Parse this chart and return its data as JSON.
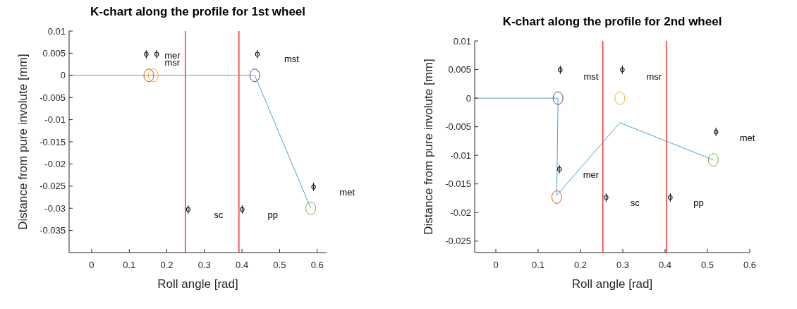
{
  "chart_data": [
    {
      "type": "line",
      "title": "K-chart along the profile for 1st wheel",
      "xlabel": "Roll angle [rad]",
      "ylabel": "Distance from pure involute [mm]",
      "xlim": [
        -0.06,
        0.625
      ],
      "xticks": [
        0,
        0.1,
        0.2,
        0.3,
        0.4,
        0.5,
        0.6
      ],
      "ylim": [
        -0.04,
        0.01
      ],
      "yticks": [
        0.01,
        0.005,
        0,
        -0.005,
        -0.01,
        -0.015,
        -0.02,
        -0.025,
        -0.03,
        -0.035
      ],
      "grid": false,
      "series": [
        {
          "type": "line",
          "color": "#4a9fd8",
          "marker": "none",
          "x": [
            -0.06,
            0.434,
            0.583
          ],
          "values": [
            0,
            0,
            -0.03
          ]
        },
        {
          "type": "scatter",
          "color": "#d95319",
          "marker": "circle",
          "x": [
            0.152
          ],
          "values": [
            0
          ]
        },
        {
          "type": "scatter",
          "color": "#edb120",
          "marker": "circle",
          "x": [
            0.164
          ],
          "values": [
            0
          ]
        },
        {
          "type": "scatter",
          "color": "#7e2f8e",
          "marker": "circle",
          "x": [
            0.434
          ],
          "values": [
            0
          ]
        },
        {
          "type": "scatter",
          "color": "#77ac30",
          "marker": "circle",
          "x": [
            0.583
          ],
          "values": [
            -0.03
          ]
        }
      ],
      "ref_lines": [
        {
          "axis": "x",
          "value": 0.249,
          "color": "#ff0000"
        },
        {
          "axis": "x",
          "value": 0.392,
          "color": "#ff0000"
        }
      ],
      "annotations": [
        "ϕ",
        "ϕ",
        "mer",
        "msr",
        "ϕ",
        "mst",
        "ϕ",
        "sc",
        "ϕ",
        "pp",
        "ϕ",
        "met"
      ]
    },
    {
      "type": "line",
      "title": "K-chart along the profile for 2nd wheel",
      "xlabel": "Roll angle [rad]",
      "ylabel": "Distance from pure involute [mm]",
      "xlim": [
        -0.05,
        0.6
      ],
      "xticks": [
        0,
        0.1,
        0.2,
        0.3,
        0.4,
        0.5,
        0.6
      ],
      "ylim": [
        -0.027,
        0.01
      ],
      "yticks": [
        0.01,
        0.005,
        0,
        -0.005,
        -0.01,
        -0.015,
        -0.02,
        -0.025
      ],
      "grid": false,
      "series": [
        {
          "type": "line",
          "color": "#4a9fd8",
          "marker": "none",
          "x": [
            -0.05,
            0.147,
            0.144,
            0.293,
            0.514
          ],
          "values": [
            0,
            0,
            -0.017,
            -0.0043,
            -0.0108
          ]
        },
        {
          "type": "scatter",
          "color": "#7e2f8e",
          "marker": "circle",
          "x": [
            0.147
          ],
          "values": [
            0
          ]
        },
        {
          "type": "scatter",
          "color": "#d95319",
          "marker": "circle",
          "x": [
            0.144
          ],
          "values": [
            -0.0173
          ]
        },
        {
          "type": "scatter",
          "color": "#edb120",
          "marker": "circle",
          "x": [
            0.293
          ],
          "values": [
            0
          ]
        },
        {
          "type": "scatter",
          "color": "#77ac30",
          "marker": "circle",
          "x": [
            0.514
          ],
          "values": [
            -0.0108
          ]
        }
      ],
      "ref_lines": [
        {
          "axis": "x",
          "value": 0.253,
          "color": "#ff0000"
        },
        {
          "axis": "x",
          "value": 0.403,
          "color": "#ff0000"
        }
      ],
      "annotations": [
        "ϕ",
        "mst",
        "ϕ",
        "msr",
        "ϕ",
        "met",
        "ϕ",
        "mer",
        "ϕ",
        "sc",
        "ϕ",
        "pp"
      ]
    }
  ]
}
